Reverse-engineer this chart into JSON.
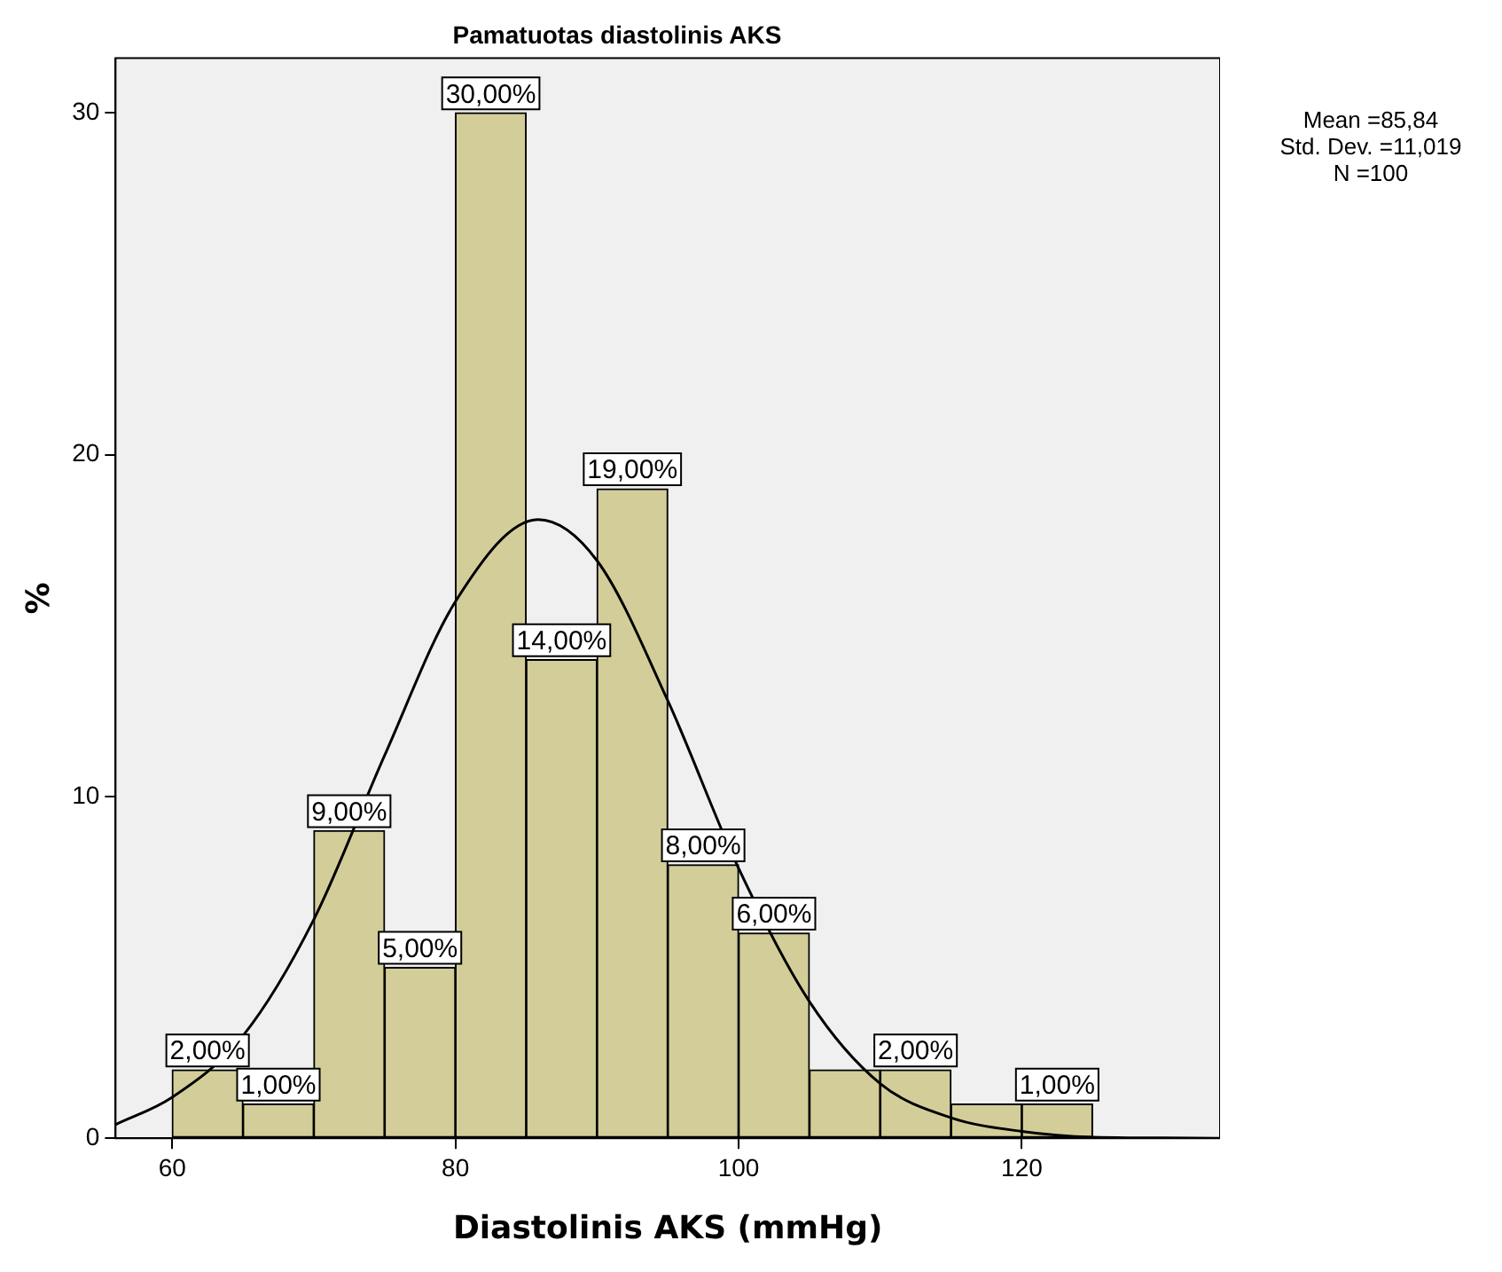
{
  "chart_data": {
    "type": "histogram",
    "title": "Pamatuotas diastolinis AKS",
    "xlabel": "Diastolinis AKS (mmHg)",
    "ylabel": "%",
    "bins": [
      60,
      65,
      70,
      75,
      80,
      85,
      90,
      95,
      100,
      105,
      110,
      115,
      120,
      125
    ],
    "values": [
      2,
      1,
      9,
      5,
      30,
      14,
      19,
      8,
      6,
      2,
      2,
      1,
      1
    ],
    "value_labels": [
      "2,00%",
      "1,00%",
      "9,00%",
      "5,00%",
      "30,00%",
      "14,00%",
      "19,00%",
      "8,00%",
      "6,00%",
      null,
      "2,00%",
      null,
      "1,00%"
    ],
    "color": "#d3ce99",
    "series": [
      {
        "type": "line",
        "color": "#000000",
        "x": [
          56,
          60,
          65,
          70,
          75,
          80,
          85.84,
          90,
          95,
          100,
          105,
          110,
          115,
          120,
          125,
          130,
          134
        ],
        "values": [
          0.4,
          1.2,
          3.0,
          6.4,
          11.2,
          15.7,
          18.1,
          16.9,
          12.8,
          7.9,
          4.0,
          1.6,
          0.6,
          0.2,
          0.03,
          0.01,
          0
        ]
      }
    ],
    "xlim": [
      56,
      134
    ],
    "xticks": [
      60,
      80,
      100,
      120
    ],
    "ylim": [
      0,
      31.6
    ],
    "yticks": [
      0,
      10,
      20,
      30
    ],
    "grid": false,
    "legend": false,
    "marker": "none",
    "annotations": [
      "Mean =85,84",
      "Std. Dev. =11,019",
      "N =100"
    ]
  }
}
